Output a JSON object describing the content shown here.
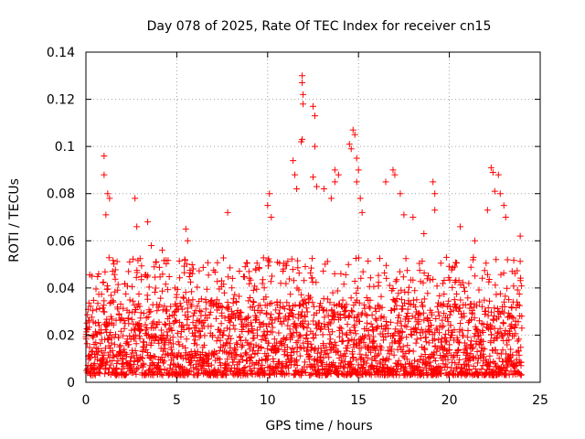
{
  "chart_data": {
    "type": "scatter",
    "title": "Day 078 of 2025, Rate Of TEC Index for receiver cn15",
    "xlabel": "GPS time / hours",
    "ylabel": "ROTI / TECUs",
    "xlim": [
      0,
      25
    ],
    "ylim": [
      0,
      0.14
    ],
    "xticks": [
      0,
      5,
      10,
      15,
      20,
      25
    ],
    "xtick_labels": [
      "0",
      "5",
      "10",
      "15",
      "20",
      "25"
    ],
    "yticks": [
      0,
      0.02,
      0.04,
      0.06,
      0.08,
      0.1,
      0.12,
      0.14
    ],
    "ytick_labels": [
      "0",
      "0.02",
      "0.04",
      "0.06",
      "0.08",
      "0.1",
      "0.12",
      "0.14"
    ],
    "grid": true,
    "marker": "+",
    "color": "#ff0000",
    "series": [
      {
        "name": "ROTI",
        "dense_band": {
          "x_range": [
            0,
            24
          ],
          "y_range": [
            0.003,
            0.035
          ]
        },
        "points": [
          [
            1.0,
            0.096
          ],
          [
            1.0,
            0.088
          ],
          [
            1.2,
            0.08
          ],
          [
            1.3,
            0.078
          ],
          [
            1.1,
            0.071
          ],
          [
            2.7,
            0.078
          ],
          [
            2.8,
            0.066
          ],
          [
            3.4,
            0.068
          ],
          [
            3.6,
            0.058
          ],
          [
            4.2,
            0.056
          ],
          [
            5.5,
            0.065
          ],
          [
            5.6,
            0.06
          ],
          [
            7.8,
            0.072
          ],
          [
            10.1,
            0.08
          ],
          [
            10.0,
            0.075
          ],
          [
            10.2,
            0.07
          ],
          [
            11.4,
            0.094
          ],
          [
            11.5,
            0.088
          ],
          [
            11.6,
            0.082
          ],
          [
            11.9,
            0.13
          ],
          [
            11.9,
            0.127
          ],
          [
            11.95,
            0.122
          ],
          [
            11.95,
            0.118
          ],
          [
            11.9,
            0.103
          ],
          [
            11.85,
            0.102
          ],
          [
            12.5,
            0.117
          ],
          [
            12.6,
            0.113
          ],
          [
            12.6,
            0.1
          ],
          [
            12.5,
            0.087
          ],
          [
            12.7,
            0.083
          ],
          [
            13.1,
            0.082
          ],
          [
            13.5,
            0.078
          ],
          [
            13.7,
            0.09
          ],
          [
            13.7,
            0.085
          ],
          [
            13.9,
            0.088
          ],
          [
            14.5,
            0.101
          ],
          [
            14.6,
            0.099
          ],
          [
            14.7,
            0.107
          ],
          [
            14.8,
            0.105
          ],
          [
            14.9,
            0.095
          ],
          [
            14.9,
            0.085
          ],
          [
            15.0,
            0.09
          ],
          [
            15.1,
            0.078
          ],
          [
            15.2,
            0.072
          ],
          [
            16.5,
            0.085
          ],
          [
            16.9,
            0.09
          ],
          [
            17.0,
            0.088
          ],
          [
            17.3,
            0.08
          ],
          [
            17.5,
            0.071
          ],
          [
            18.0,
            0.07
          ],
          [
            18.6,
            0.063
          ],
          [
            19.1,
            0.085
          ],
          [
            19.2,
            0.08
          ],
          [
            19.2,
            0.073
          ],
          [
            20.6,
            0.066
          ],
          [
            21.4,
            0.06
          ],
          [
            22.1,
            0.073
          ],
          [
            22.3,
            0.091
          ],
          [
            22.4,
            0.089
          ],
          [
            22.5,
            0.081
          ],
          [
            22.7,
            0.088
          ],
          [
            22.8,
            0.08
          ],
          [
            23.0,
            0.075
          ],
          [
            23.1,
            0.07
          ],
          [
            23.9,
            0.062
          ]
        ]
      }
    ]
  }
}
